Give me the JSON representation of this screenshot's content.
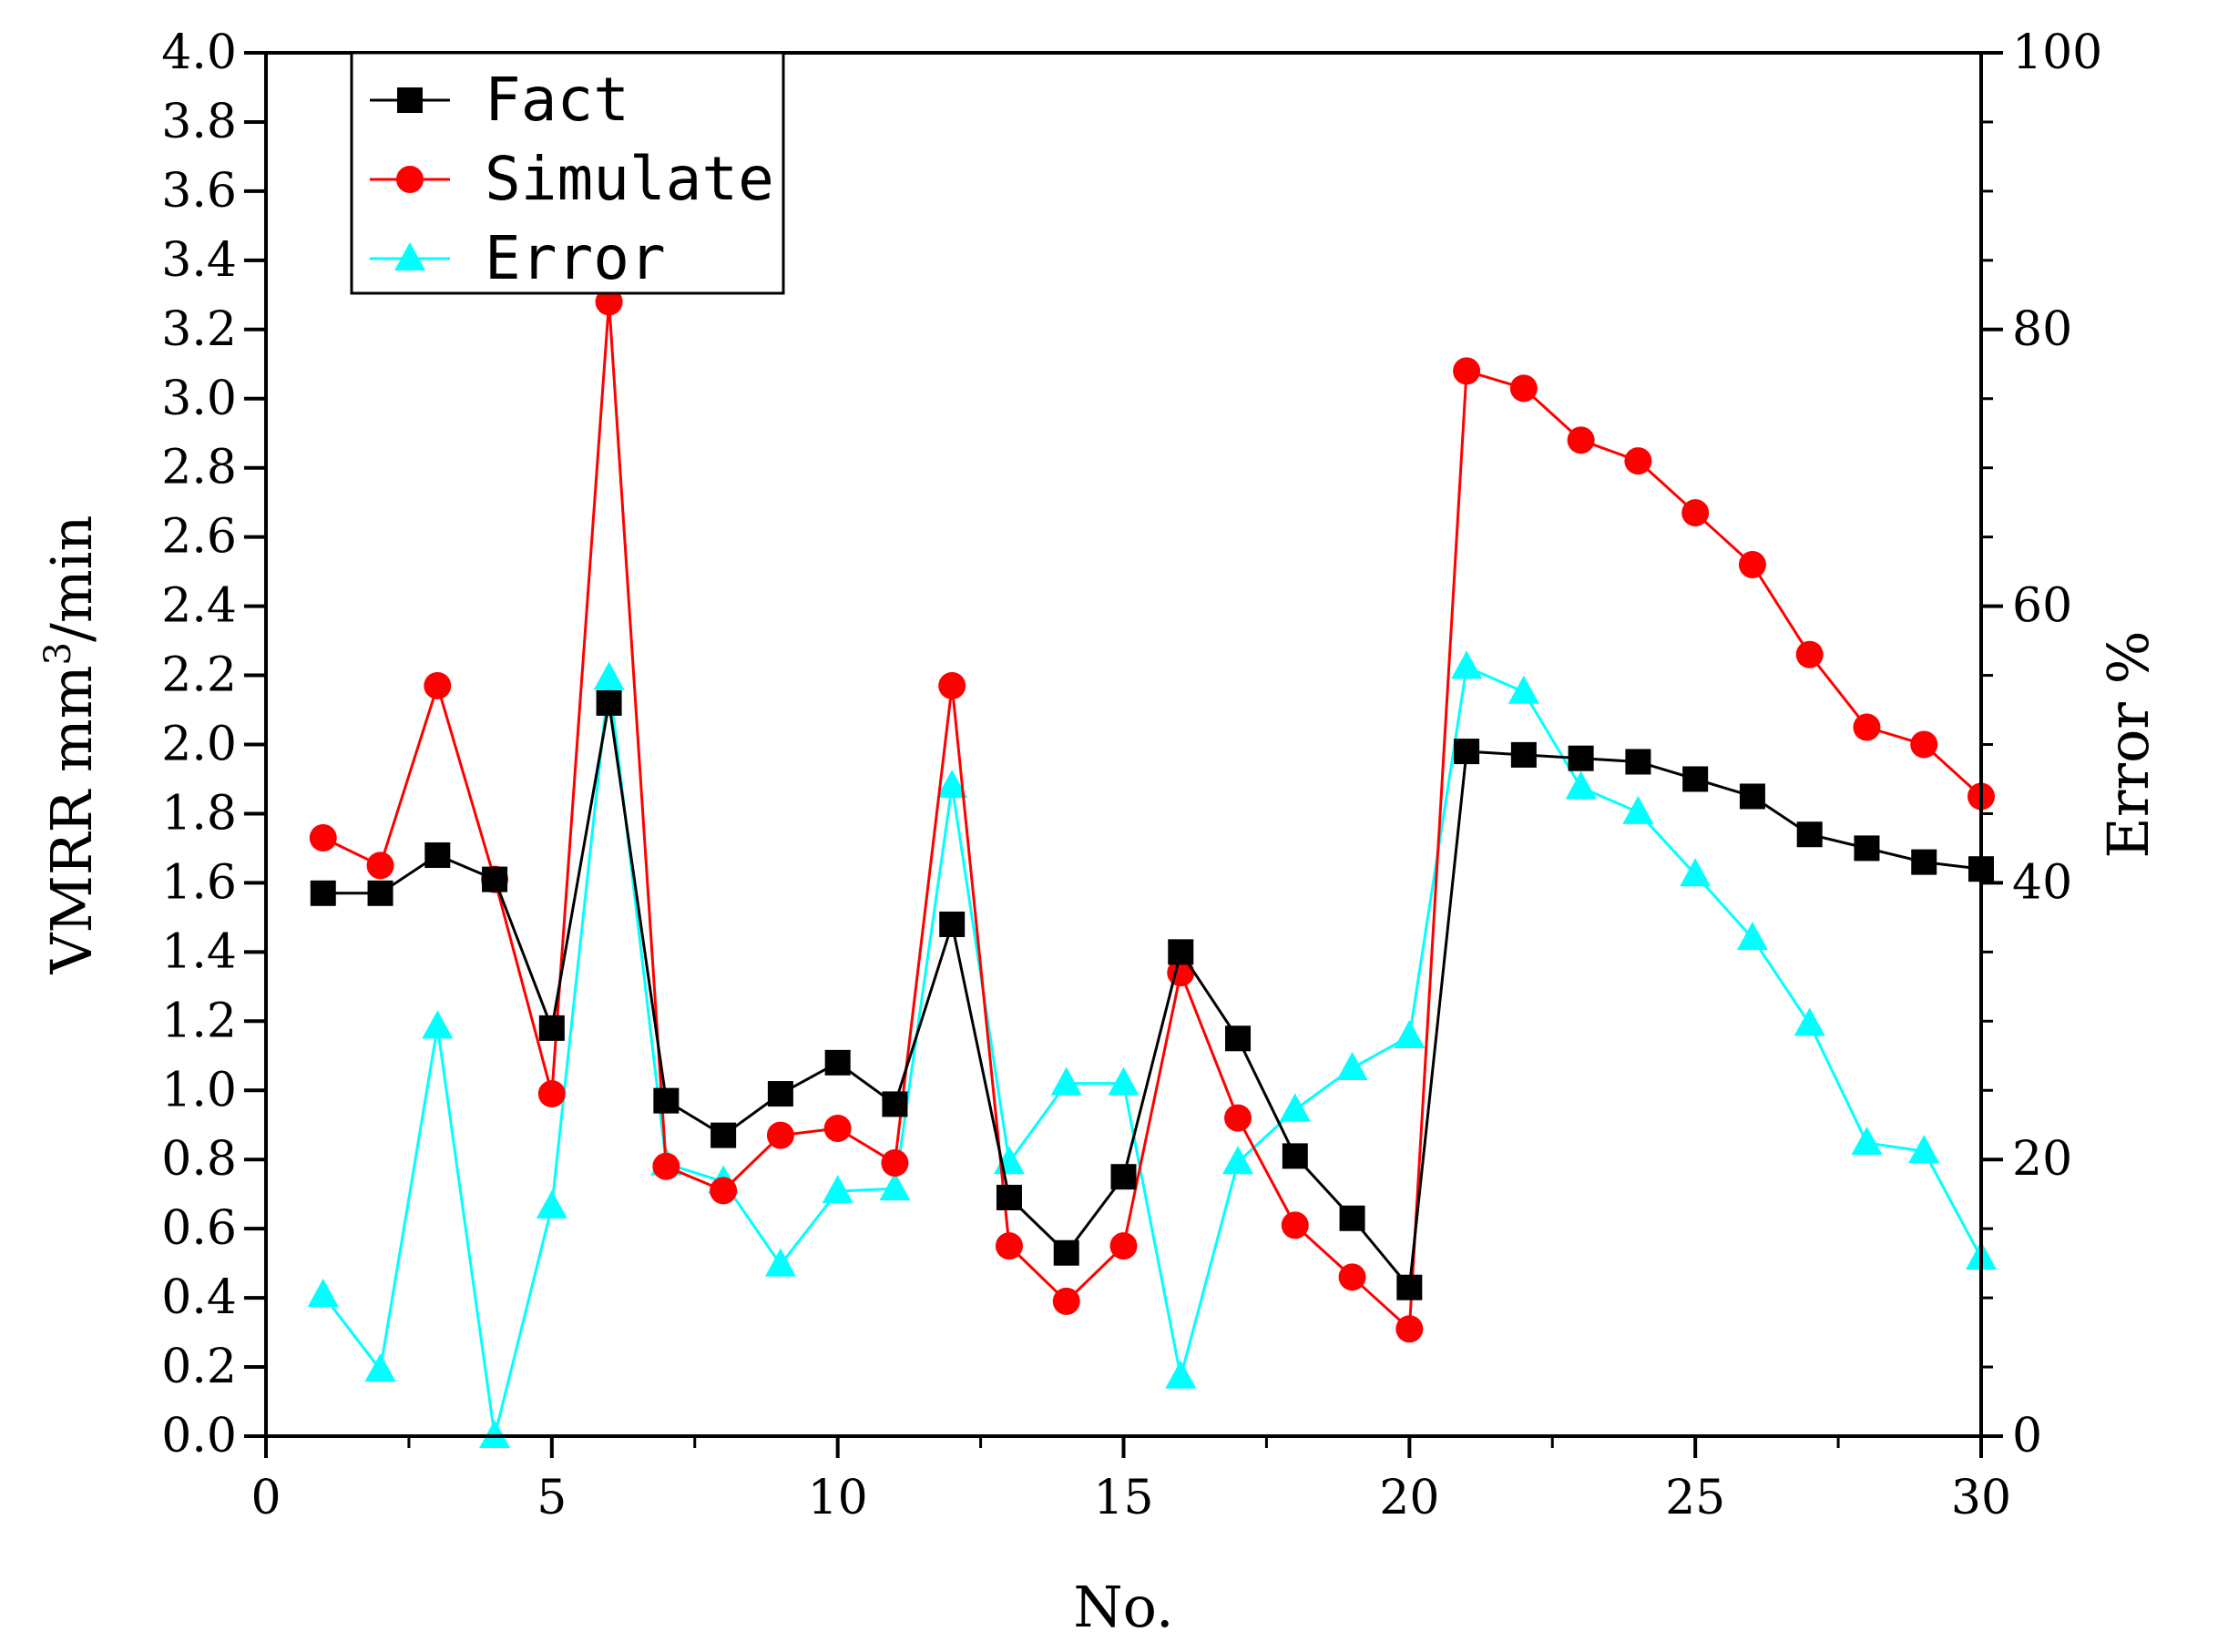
{
  "chart_data": {
    "type": "line",
    "xlabel": "No.",
    "ylabel_left": "VMRR mm³/min",
    "ylabel_left_parts": {
      "main": "VMRR mm",
      "sup": "3",
      "tail": "/min"
    },
    "ylabel_right": "Error %",
    "xlim": [
      0,
      30
    ],
    "ylim_left": [
      0,
      4.0
    ],
    "ylim_right": [
      0,
      100
    ],
    "x_ticks": [
      "0",
      "5",
      "10",
      "15",
      "20",
      "25",
      "30"
    ],
    "y_left_ticks": [
      "0.0",
      "0.2",
      "0.4",
      "0.6",
      "0.8",
      "1.0",
      "1.2",
      "1.4",
      "1.6",
      "1.8",
      "2.0",
      "2.2",
      "2.4",
      "2.6",
      "2.8",
      "3.0",
      "3.2",
      "3.4",
      "3.6",
      "3.8",
      "4.0"
    ],
    "y_right_ticks": [
      "0",
      "20",
      "40",
      "60",
      "80",
      "100"
    ],
    "legend_position": "top-left",
    "x": [
      1,
      2,
      3,
      4,
      5,
      6,
      7,
      8,
      9,
      10,
      11,
      12,
      13,
      14,
      15,
      16,
      17,
      18,
      19,
      20,
      21,
      22,
      23,
      24,
      25,
      26,
      27,
      28,
      29,
      30
    ],
    "series": [
      {
        "name": "Fact",
        "axis": "left",
        "color": "#000000",
        "marker": "square",
        "values": [
          1.57,
          1.57,
          1.68,
          1.61,
          1.18,
          2.12,
          0.97,
          0.87,
          0.99,
          1.08,
          0.96,
          1.48,
          0.69,
          0.53,
          0.75,
          1.4,
          1.15,
          0.81,
          0.63,
          0.43,
          1.98,
          1.97,
          1.96,
          1.95,
          1.9,
          1.85,
          1.74,
          1.7,
          1.66,
          1.64
        ]
      },
      {
        "name": "Simulate",
        "axis": "left",
        "color": "#ff0000",
        "marker": "circle",
        "values": [
          1.73,
          1.65,
          2.17,
          1.61,
          0.99,
          3.28,
          0.78,
          0.71,
          0.87,
          0.89,
          0.79,
          2.17,
          0.55,
          0.39,
          0.55,
          1.34,
          0.92,
          0.61,
          0.46,
          0.31,
          3.08,
          3.03,
          2.88,
          2.82,
          2.67,
          2.52,
          2.26,
          2.05,
          2.0,
          1.85
        ]
      },
      {
        "name": "Error",
        "axis": "right",
        "color": "#00ffff",
        "marker": "triangle",
        "values": [
          10.2,
          4.8,
          29.6,
          0.0,
          16.6,
          54.8,
          19.7,
          18.4,
          12.4,
          17.7,
          17.9,
          47.0,
          19.8,
          25.5,
          25.5,
          4.3,
          19.8,
          23.6,
          26.6,
          28.9,
          55.6,
          53.8,
          46.9,
          45.1,
          40.6,
          36.0,
          29.8,
          21.2,
          20.6,
          12.9
        ]
      }
    ]
  }
}
